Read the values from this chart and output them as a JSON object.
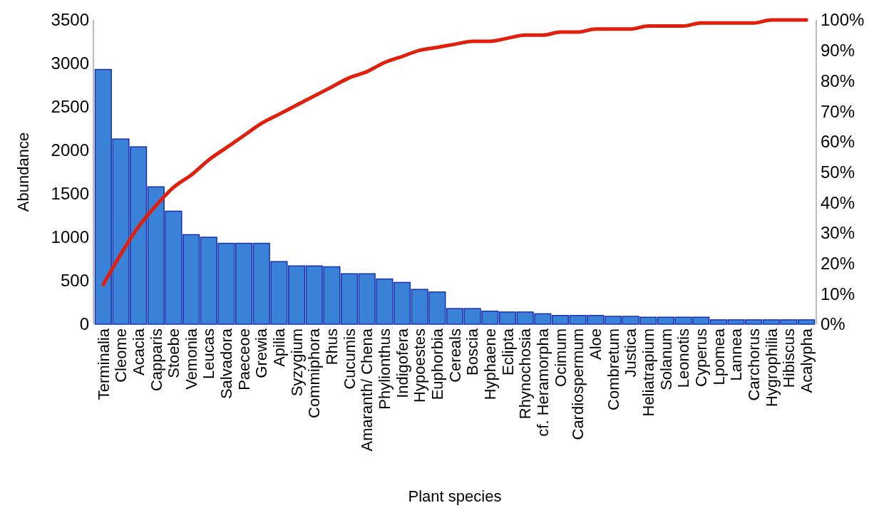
{
  "chart_data": {
    "type": "bar",
    "xlabel": "Plant species",
    "ylabel": "Abundance",
    "categories": [
      "Terminalia",
      "Cleome",
      "Acacia",
      "Capparis",
      "Stoebe",
      "Vemonia",
      "Leucas",
      "Salvadora",
      "Paeceoe",
      "Grewia",
      "Apilia",
      "Syzygium",
      "Commiphora",
      "Rhus",
      "Cucumis",
      "Amaranth/ Chena",
      "Phylionthus",
      "Indigofera",
      "Hypoestes",
      "Euphorbia",
      "Cereals",
      "Boscia",
      "Hyphaene",
      "Eclipta",
      "Rhynochosia",
      "cf. Heramorpha",
      "Ocimum",
      "Cardiospermum",
      "Aloe",
      "Combretum",
      "Justica",
      "Heliatrapium",
      "Solanum",
      "Leonotis",
      "Cyperus",
      "Lpomea",
      "Lannea",
      "Carchorus",
      "Hygrophilia",
      "Hibiscus",
      "Acalypha"
    ],
    "series": [
      {
        "color": "#3a82d8",
        "values": [
          2930,
          2130,
          2040,
          1580,
          1300,
          1030,
          1000,
          930,
          930,
          930,
          720,
          670,
          670,
          660,
          580,
          580,
          520,
          480,
          400,
          370,
          180,
          180,
          150,
          140,
          140,
          120,
          100,
          100,
          100,
          90,
          90,
          80,
          80,
          80,
          80,
          50,
          50,
          50,
          50,
          50,
          50
        ]
      },
      {
        "type": "line",
        "axis": "y2",
        "color": "#e0200c",
        "values": [
          13,
          23,
          32,
          39,
          45,
          49,
          54,
          58,
          62,
          66,
          69,
          72,
          75,
          78,
          81,
          83,
          86,
          88,
          90,
          91,
          92,
          93,
          93,
          94,
          95,
          95,
          96,
          96,
          97,
          97,
          97,
          98,
          98,
          98,
          99,
          99,
          99,
          99,
          100,
          100,
          100
        ]
      }
    ],
    "ylim": [
      0,
      3500
    ],
    "yticks": [
      0,
      500,
      1000,
      1500,
      2000,
      2500,
      3000,
      3500
    ],
    "y2lim": [
      0,
      100
    ],
    "y2ticks": [
      {
        "value": 0,
        "label": "0%"
      },
      {
        "value": 10,
        "label": "10%"
      },
      {
        "value": 20,
        "label": "20%"
      },
      {
        "value": 30,
        "label": "30%"
      },
      {
        "value": 40,
        "label": "40%"
      },
      {
        "value": 50,
        "label": "50%"
      },
      {
        "value": 60,
        "label": "60%"
      },
      {
        "value": 70,
        "label": "70%"
      },
      {
        "value": 80,
        "label": "80%"
      },
      {
        "value": 90,
        "label": "90%"
      },
      {
        "value": 100,
        "label": "100%"
      }
    ],
    "grid": false,
    "marker": "none",
    "line_style": "solid"
  }
}
